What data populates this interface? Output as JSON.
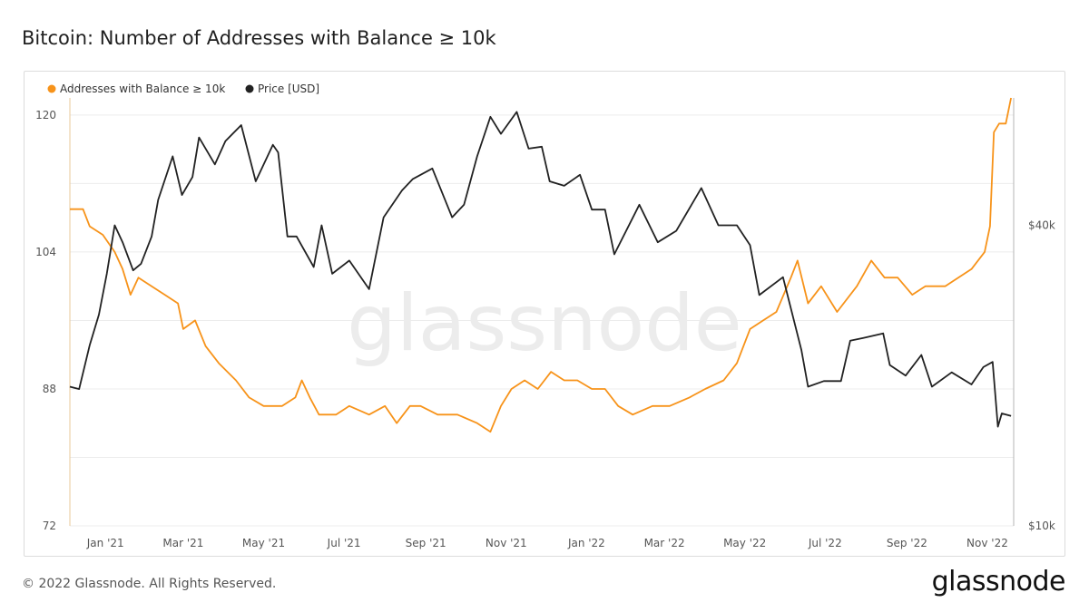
{
  "page": {
    "title": "Bitcoin: Number of Addresses with Balance ≥ 10k",
    "copyright": "© 2022 Glassnode. All Rights Reserved.",
    "brand": "glassnode",
    "watermark": "glassnode"
  },
  "colors": {
    "addresses": "#f7931a",
    "price": "#222222",
    "grid": "#ececec"
  },
  "chart_data": {
    "type": "line",
    "title": "Bitcoin: Number of Addresses with Balance ≥ 10k",
    "legend": [
      {
        "label": "Addresses with Balance ≥ 10k",
        "color": "#f7931a"
      },
      {
        "label": "Price [USD]",
        "color": "#222222"
      }
    ],
    "legend_position": "top-left",
    "grid": true,
    "x_range": [
      "2020-12-05",
      "2022-11-21"
    ],
    "x_ticks": [
      {
        "label": "Jan '21",
        "date": "2021-01-01"
      },
      {
        "label": "Mar '21",
        "date": "2021-03-01"
      },
      {
        "label": "May '21",
        "date": "2021-05-01"
      },
      {
        "label": "Jul '21",
        "date": "2021-07-01"
      },
      {
        "label": "Sep '21",
        "date": "2021-09-01"
      },
      {
        "label": "Nov '21",
        "date": "2021-11-01"
      },
      {
        "label": "Jan '22",
        "date": "2022-01-01"
      },
      {
        "label": "Mar '22",
        "date": "2022-03-01"
      },
      {
        "label": "May '22",
        "date": "2022-05-01"
      },
      {
        "label": "Jul '22",
        "date": "2022-07-01"
      },
      {
        "label": "Sep '22",
        "date": "2022-09-01"
      },
      {
        "label": "Nov '22",
        "date": "2022-11-01"
      }
    ],
    "y_left": {
      "ticks": [
        "72",
        "88",
        "104",
        "120"
      ],
      "range": [
        72,
        122
      ]
    },
    "y_right": {
      "scale": "log",
      "ticks": [
        {
          "label": "$10k",
          "value": 10000
        },
        {
          "label": "$40k",
          "value": 40000
        }
      ],
      "range": [
        10000,
        72000
      ]
    },
    "series": [
      {
        "name": "Addresses with Balance ≥ 10k",
        "axis": "left",
        "color": "#f7931a",
        "points": [
          [
            "2020-12-05",
            109
          ],
          [
            "2020-12-15",
            109
          ],
          [
            "2020-12-20",
            107
          ],
          [
            "2020-12-30",
            106
          ],
          [
            "2021-01-08",
            104
          ],
          [
            "2021-01-14",
            102
          ],
          [
            "2021-01-20",
            99
          ],
          [
            "2021-01-26",
            101
          ],
          [
            "2021-02-05",
            100
          ],
          [
            "2021-02-15",
            99
          ],
          [
            "2021-02-25",
            98
          ],
          [
            "2021-03-01",
            95
          ],
          [
            "2021-03-10",
            96
          ],
          [
            "2021-03-18",
            93
          ],
          [
            "2021-03-28",
            91
          ],
          [
            "2021-04-10",
            89
          ],
          [
            "2021-04-20",
            87
          ],
          [
            "2021-05-01",
            86
          ],
          [
            "2021-05-15",
            86
          ],
          [
            "2021-05-25",
            87
          ],
          [
            "2021-05-30",
            89
          ],
          [
            "2021-06-05",
            87
          ],
          [
            "2021-06-12",
            85
          ],
          [
            "2021-06-25",
            85
          ],
          [
            "2021-07-05",
            86
          ],
          [
            "2021-07-20",
            85
          ],
          [
            "2021-08-01",
            86
          ],
          [
            "2021-08-10",
            84
          ],
          [
            "2021-08-20",
            86
          ],
          [
            "2021-08-28",
            86
          ],
          [
            "2021-09-10",
            85
          ],
          [
            "2021-09-25",
            85
          ],
          [
            "2021-10-10",
            84
          ],
          [
            "2021-10-20",
            83
          ],
          [
            "2021-10-28",
            86
          ],
          [
            "2021-11-05",
            88
          ],
          [
            "2021-11-15",
            89
          ],
          [
            "2021-11-25",
            88
          ],
          [
            "2021-12-05",
            90
          ],
          [
            "2021-12-15",
            89
          ],
          [
            "2021-12-25",
            89
          ],
          [
            "2022-01-05",
            88
          ],
          [
            "2022-01-15",
            88
          ],
          [
            "2022-01-25",
            86
          ],
          [
            "2022-02-05",
            85
          ],
          [
            "2022-02-20",
            86
          ],
          [
            "2022-03-05",
            86
          ],
          [
            "2022-03-20",
            87
          ],
          [
            "2022-04-01",
            88
          ],
          [
            "2022-04-15",
            89
          ],
          [
            "2022-04-25",
            91
          ],
          [
            "2022-05-05",
            95
          ],
          [
            "2022-05-15",
            96
          ],
          [
            "2022-05-25",
            97
          ],
          [
            "2022-06-05",
            101
          ],
          [
            "2022-06-10",
            103
          ],
          [
            "2022-06-18",
            98
          ],
          [
            "2022-06-28",
            100
          ],
          [
            "2022-07-10",
            97
          ],
          [
            "2022-07-25",
            100
          ],
          [
            "2022-08-05",
            103
          ],
          [
            "2022-08-15",
            101
          ],
          [
            "2022-08-25",
            101
          ],
          [
            "2022-09-05",
            99
          ],
          [
            "2022-09-15",
            100
          ],
          [
            "2022-09-30",
            100
          ],
          [
            "2022-10-10",
            101
          ],
          [
            "2022-10-20",
            102
          ],
          [
            "2022-10-30",
            104
          ],
          [
            "2022-11-03",
            107
          ],
          [
            "2022-11-06",
            118
          ],
          [
            "2022-11-10",
            119
          ],
          [
            "2022-11-15",
            119
          ],
          [
            "2022-11-19",
            122
          ]
        ]
      },
      {
        "name": "Price [USD]",
        "axis": "right",
        "color": "#222222",
        "points": [
          [
            "2020-12-05",
            19000
          ],
          [
            "2020-12-12",
            18800
          ],
          [
            "2020-12-20",
            23000
          ],
          [
            "2020-12-27",
            26500
          ],
          [
            "2021-01-02",
            32000
          ],
          [
            "2021-01-08",
            40000
          ],
          [
            "2021-01-14",
            37000
          ],
          [
            "2021-01-22",
            32500
          ],
          [
            "2021-01-28",
            33500
          ],
          [
            "2021-02-05",
            38000
          ],
          [
            "2021-02-10",
            45000
          ],
          [
            "2021-02-21",
            55000
          ],
          [
            "2021-02-28",
            46000
          ],
          [
            "2021-03-08",
            50000
          ],
          [
            "2021-03-13",
            60000
          ],
          [
            "2021-03-25",
            53000
          ],
          [
            "2021-04-02",
            59000
          ],
          [
            "2021-04-14",
            63500
          ],
          [
            "2021-04-25",
            49000
          ],
          [
            "2021-05-08",
            58000
          ],
          [
            "2021-05-12",
            56000
          ],
          [
            "2021-05-19",
            38000
          ],
          [
            "2021-05-26",
            38000
          ],
          [
            "2021-06-08",
            33000
          ],
          [
            "2021-06-14",
            40000
          ],
          [
            "2021-06-22",
            32000
          ],
          [
            "2021-07-05",
            34000
          ],
          [
            "2021-07-20",
            29800
          ],
          [
            "2021-07-31",
            41500
          ],
          [
            "2021-08-14",
            47000
          ],
          [
            "2021-08-22",
            49500
          ],
          [
            "2021-09-06",
            52000
          ],
          [
            "2021-09-21",
            41500
          ],
          [
            "2021-09-30",
            44000
          ],
          [
            "2021-10-10",
            55000
          ],
          [
            "2021-10-20",
            66000
          ],
          [
            "2021-10-28",
            61000
          ],
          [
            "2021-11-09",
            67500
          ],
          [
            "2021-11-18",
            57000
          ],
          [
            "2021-11-28",
            57500
          ],
          [
            "2021-12-04",
            49000
          ],
          [
            "2021-12-15",
            48000
          ],
          [
            "2021-12-27",
            50500
          ],
          [
            "2022-01-05",
            43000
          ],
          [
            "2022-01-15",
            43000
          ],
          [
            "2022-01-22",
            35000
          ],
          [
            "2022-02-10",
            44000
          ],
          [
            "2022-02-24",
            37000
          ],
          [
            "2022-03-10",
            39000
          ],
          [
            "2022-03-29",
            47500
          ],
          [
            "2022-04-11",
            40000
          ],
          [
            "2022-04-25",
            40000
          ],
          [
            "2022-05-05",
            36500
          ],
          [
            "2022-05-12",
            29000
          ],
          [
            "2022-05-30",
            31500
          ],
          [
            "2022-06-13",
            22500
          ],
          [
            "2022-06-18",
            19000
          ],
          [
            "2022-06-30",
            19500
          ],
          [
            "2022-07-13",
            19500
          ],
          [
            "2022-07-20",
            23500
          ],
          [
            "2022-07-30",
            23800
          ],
          [
            "2022-08-14",
            24300
          ],
          [
            "2022-08-19",
            21000
          ],
          [
            "2022-08-31",
            20000
          ],
          [
            "2022-09-12",
            22000
          ],
          [
            "2022-09-20",
            19000
          ],
          [
            "2022-10-05",
            20300
          ],
          [
            "2022-10-20",
            19200
          ],
          [
            "2022-10-29",
            20800
          ],
          [
            "2022-11-05",
            21300
          ],
          [
            "2022-11-09",
            15800
          ],
          [
            "2022-11-12",
            16800
          ],
          [
            "2022-11-19",
            16600
          ]
        ]
      }
    ]
  }
}
